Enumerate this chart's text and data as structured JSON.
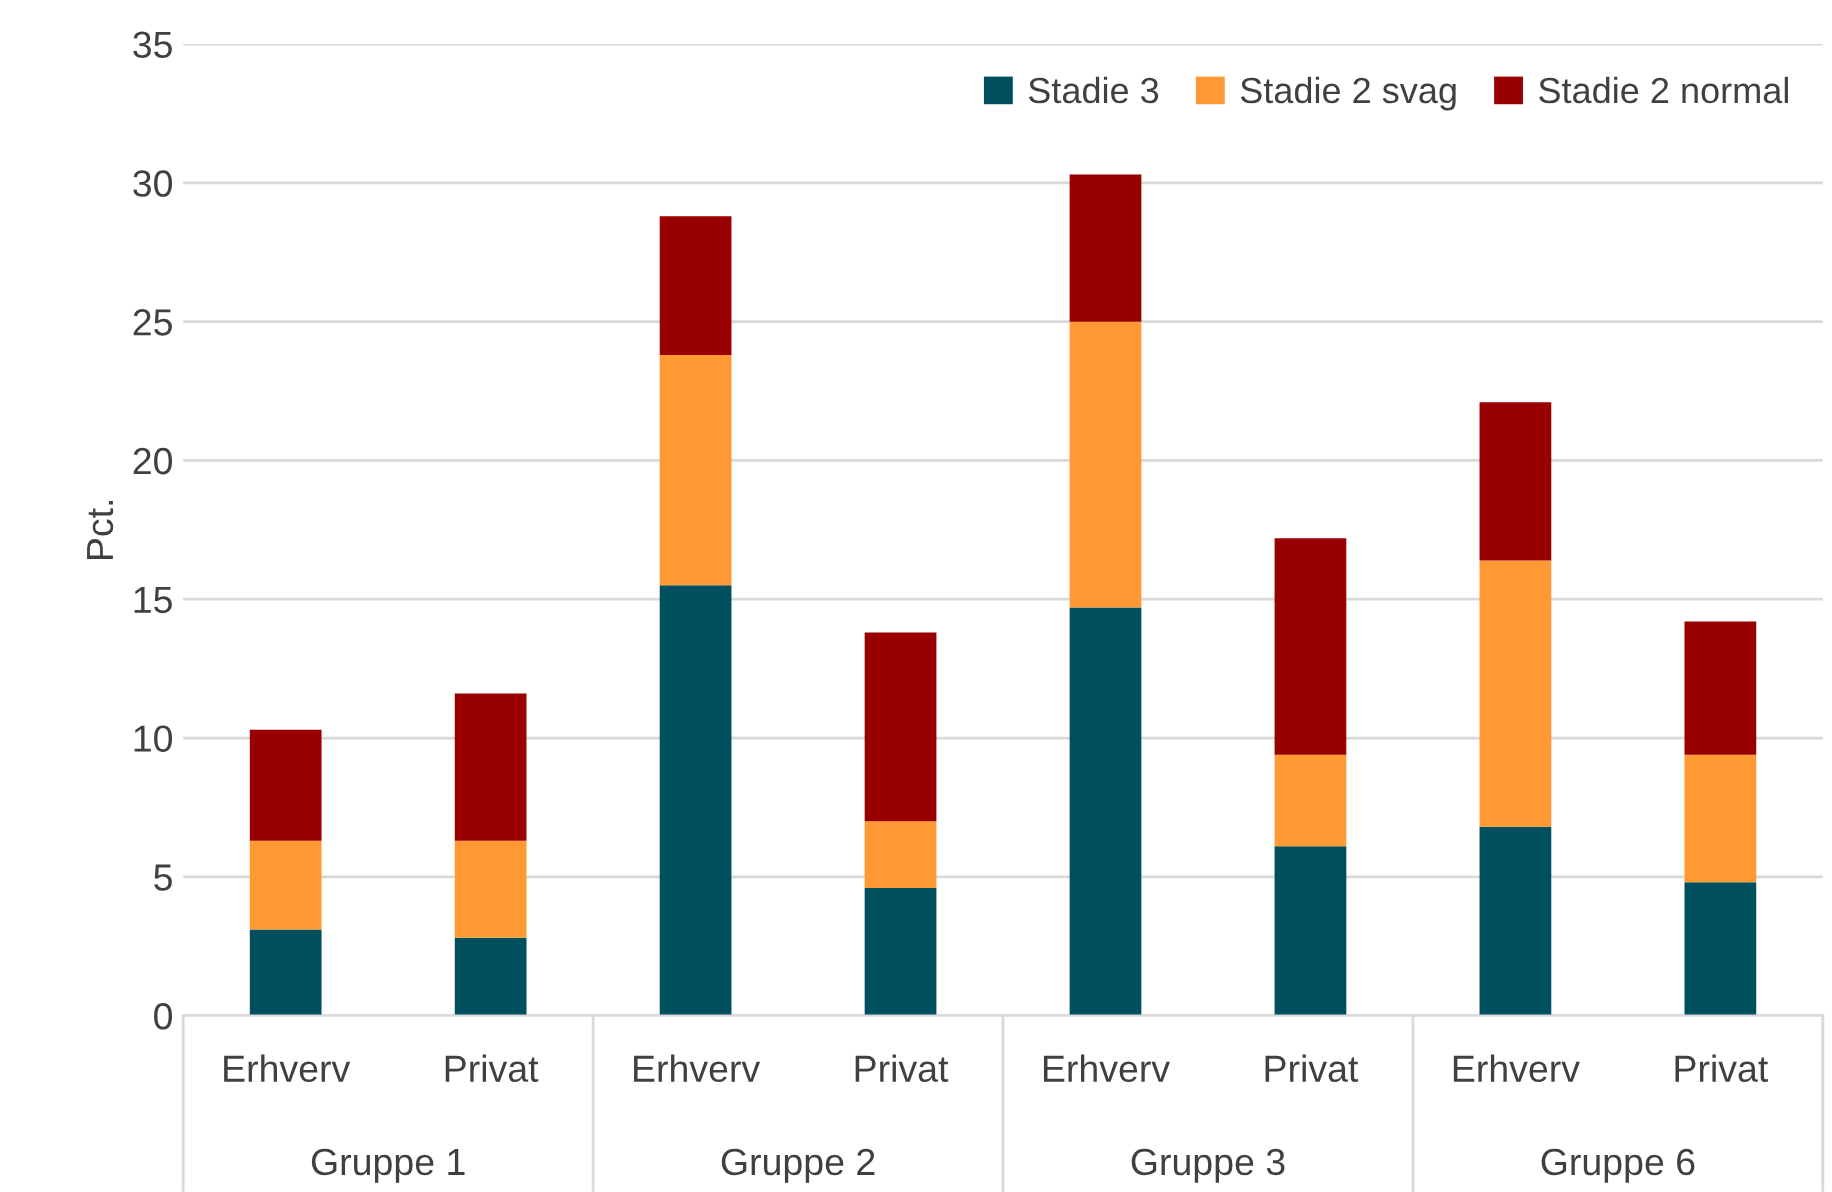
{
  "chart_data": {
    "type": "bar",
    "stacked": true,
    "ylabel": "Pct.",
    "categories": [
      "Erhverv",
      "Privat",
      "Erhverv",
      "Privat",
      "Erhverv",
      "Privat",
      "Erhverv",
      "Privat"
    ],
    "series": [
      {
        "name": "Stadie 3",
        "color": "#004f5e",
        "values": [
          3.1,
          2.8,
          15.5,
          4.6,
          14.7,
          6.1,
          6.8,
          4.8
        ]
      },
      {
        "name": "Stadie 2 svag",
        "color": "#ff9933",
        "values": [
          3.2,
          3.5,
          8.3,
          2.4,
          10.3,
          3.3,
          9.6,
          4.6
        ]
      },
      {
        "name": "Stadie 2 normal",
        "color": "#990000",
        "values": [
          4.0,
          5.3,
          5.0,
          6.8,
          5.3,
          7.8,
          5.7,
          4.8
        ]
      }
    ],
    "annotations": [
      "Gruppe 1",
      "Gruppe 2",
      "Gruppe 3",
      "Gruppe 6"
    ],
    "ylim": [
      0,
      35
    ],
    "yticks": [
      0,
      5,
      10,
      15,
      20,
      25,
      30,
      35
    ],
    "grid": "y",
    "legend": "top right"
  }
}
